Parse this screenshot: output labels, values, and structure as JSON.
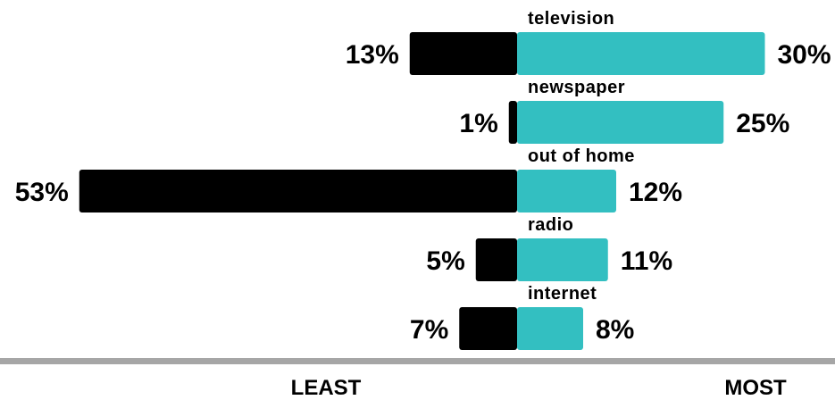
{
  "chart_data": {
    "type": "bar",
    "orientation": "horizontal-diverging",
    "categories": [
      "television",
      "newspaper",
      "out of home",
      "radio",
      "internet"
    ],
    "series": [
      {
        "name": "LEAST",
        "values": [
          13,
          1,
          53,
          5,
          7
        ],
        "labels": [
          "13%",
          "1%",
          "53%",
          "5%",
          "7%"
        ]
      },
      {
        "name": "MOST",
        "values": [
          30,
          25,
          12,
          11,
          8
        ],
        "labels": [
          "30%",
          "25%",
          "12%",
          "11%",
          "8%"
        ]
      }
    ],
    "axis_labels": {
      "left": "LEAST",
      "right": "MOST"
    },
    "unit": "%",
    "grid": false,
    "colors": {
      "least": "#000000",
      "most": "#33bfc1",
      "baseline": "#a6a6a6"
    }
  }
}
